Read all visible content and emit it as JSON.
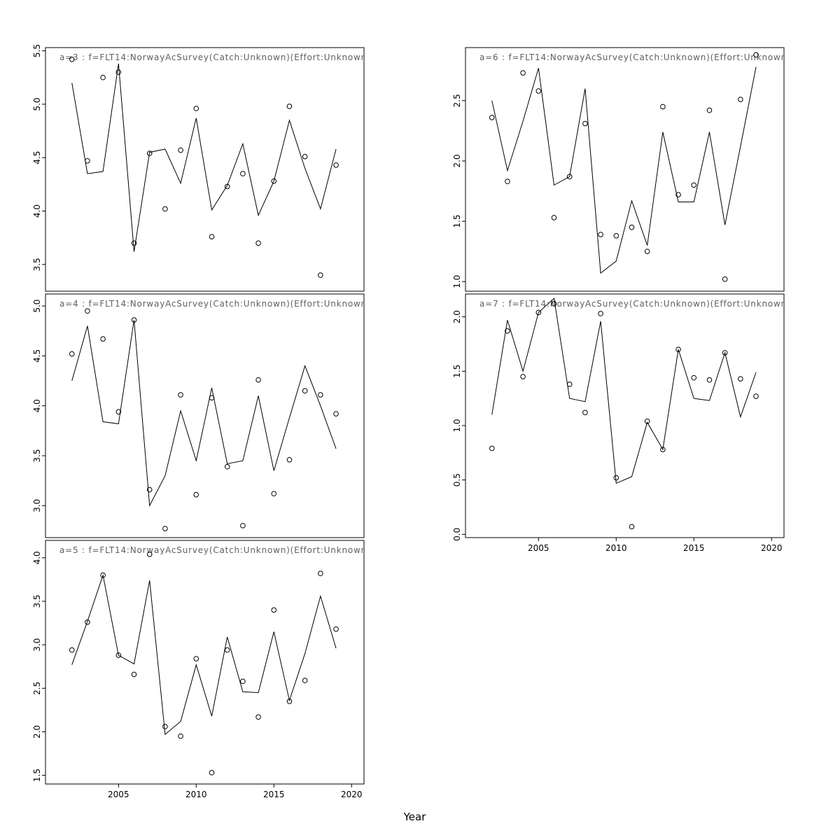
{
  "chart_meta": {
    "xlabel": "Year",
    "x_ticks": [
      2005,
      2010,
      2015,
      2020
    ],
    "x_range": [
      2000.3,
      2020.8
    ],
    "colors": {
      "line": "#000000",
      "points": "#000000",
      "axis": "#000000",
      "border": "#000000",
      "title": "#606060",
      "background": "#ffffff"
    }
  },
  "chart_data": [
    {
      "id": "a3",
      "type": "line",
      "title": "a=3  :  f=FLT14:NorwayAcSurvey(Catch:Unknown)(Effort:Unknown",
      "x": [
        2002,
        2003,
        2004,
        2005,
        2006,
        2007,
        2008,
        2009,
        2010,
        2011,
        2012,
        2013,
        2014,
        2015,
        2016,
        2017,
        2018,
        2019
      ],
      "series": [
        {
          "name": "fit",
          "style": "line",
          "values": [
            5.2,
            4.35,
            4.37,
            5.38,
            3.62,
            4.55,
            4.58,
            4.26,
            4.87,
            4.01,
            4.24,
            4.63,
            3.96,
            4.28,
            4.85,
            4.4,
            4.02,
            4.58
          ]
        },
        {
          "name": "observed",
          "style": "open-circle",
          "values": [
            5.42,
            4.47,
            5.25,
            5.3,
            3.7,
            4.54,
            4.02,
            4.57,
            4.96,
            3.76,
            4.23,
            4.35,
            3.7,
            4.28,
            4.98,
            4.51,
            3.4,
            4.43
          ]
        }
      ],
      "ylim": [
        3.25,
        5.53
      ],
      "yticks": [
        3.5,
        4.0,
        4.5,
        5.0,
        5.5
      ]
    },
    {
      "id": "a4",
      "type": "line",
      "title": "a=4  :  f=FLT14:NorwayAcSurvey(Catch:Unknown)(Effort:Unknown",
      "x": [
        2002,
        2003,
        2004,
        2005,
        2006,
        2007,
        2008,
        2009,
        2010,
        2011,
        2012,
        2013,
        2014,
        2015,
        2016,
        2017,
        2018,
        2019
      ],
      "series": [
        {
          "name": "fit",
          "style": "line",
          "values": [
            4.25,
            4.8,
            3.84,
            3.82,
            4.86,
            3.0,
            3.3,
            3.95,
            3.45,
            4.18,
            3.42,
            3.45,
            4.1,
            3.35,
            3.88,
            4.4,
            4.0,
            3.57
          ]
        },
        {
          "name": "observed",
          "style": "open-circle",
          "values": [
            4.52,
            4.95,
            4.67,
            3.94,
            4.86,
            3.16,
            2.77,
            4.11,
            3.11,
            4.08,
            3.39,
            2.8,
            4.26,
            3.12,
            3.46,
            4.15,
            4.11,
            3.92
          ]
        }
      ],
      "ylim": [
        2.68,
        5.12
      ],
      "yticks": [
        3.0,
        3.5,
        4.0,
        4.5,
        5.0
      ]
    },
    {
      "id": "a5",
      "type": "line",
      "title": "a=5  :  f=FLT14:NorwayAcSurvey(Catch:Unknown)(Effort:Unknown",
      "x": [
        2002,
        2003,
        2004,
        2005,
        2006,
        2007,
        2008,
        2009,
        2010,
        2011,
        2012,
        2013,
        2014,
        2015,
        2016,
        2017,
        2018,
        2019
      ],
      "series": [
        {
          "name": "fit",
          "style": "line",
          "values": [
            2.77,
            3.27,
            3.8,
            2.88,
            2.78,
            3.74,
            1.97,
            2.12,
            2.77,
            2.18,
            3.09,
            2.46,
            2.45,
            3.15,
            2.36,
            2.9,
            3.56,
            2.96
          ]
        },
        {
          "name": "observed",
          "style": "open-circle",
          "values": [
            2.94,
            3.26,
            3.8,
            2.88,
            2.66,
            4.04,
            2.06,
            1.95,
            2.84,
            1.53,
            2.94,
            2.58,
            2.17,
            3.4,
            2.35,
            2.59,
            3.82,
            3.18
          ]
        }
      ],
      "ylim": [
        1.4,
        4.2
      ],
      "yticks": [
        1.5,
        2.0,
        2.5,
        3.0,
        3.5,
        4.0
      ]
    },
    {
      "id": "a6",
      "type": "line",
      "title": "a=6  :  f=FLT14:NorwayAcSurvey(Catch:Unknown)(Effort:Unknown",
      "x": [
        2002,
        2003,
        2004,
        2005,
        2006,
        2007,
        2008,
        2009,
        2010,
        2011,
        2012,
        2013,
        2014,
        2015,
        2016,
        2017,
        2018,
        2019
      ],
      "series": [
        {
          "name": "fit",
          "style": "line",
          "values": [
            2.5,
            1.92,
            2.33,
            2.77,
            1.8,
            1.87,
            2.6,
            1.07,
            1.17,
            1.67,
            1.3,
            2.24,
            1.66,
            1.66,
            2.24,
            1.47,
            2.12,
            2.78
          ]
        },
        {
          "name": "observed",
          "style": "open-circle",
          "values": [
            2.36,
            1.83,
            2.73,
            2.58,
            1.53,
            1.87,
            2.31,
            1.39,
            1.38,
            1.45,
            1.25,
            2.45,
            1.72,
            1.8,
            2.42,
            1.02,
            2.51,
            2.88
          ]
        }
      ],
      "ylim": [
        0.92,
        2.94
      ],
      "yticks": [
        1.0,
        1.5,
        2.0,
        2.5
      ]
    },
    {
      "id": "a7",
      "type": "line",
      "title": "a=7  :  f=FLT14:NorwayAcSurvey(Catch:Unknown)(Effort:Unknown",
      "x": [
        2002,
        2003,
        2004,
        2005,
        2006,
        2007,
        2008,
        2009,
        2010,
        2011,
        2012,
        2013,
        2014,
        2015,
        2016,
        2017,
        2018,
        2019
      ],
      "series": [
        {
          "name": "fit",
          "style": "line",
          "values": [
            1.1,
            1.97,
            1.5,
            2.04,
            2.17,
            1.25,
            1.22,
            1.96,
            0.47,
            0.53,
            1.03,
            0.78,
            1.7,
            1.25,
            1.23,
            1.67,
            1.08,
            1.49
          ]
        },
        {
          "name": "observed",
          "style": "open-circle",
          "values": [
            0.79,
            1.87,
            1.45,
            2.04,
            2.12,
            1.38,
            1.12,
            2.03,
            0.52,
            0.07,
            1.04,
            0.78,
            1.7,
            1.44,
            1.42,
            1.67,
            1.43,
            1.27
          ]
        }
      ],
      "ylim": [
        -0.03,
        2.21
      ],
      "yticks": [
        0.0,
        0.5,
        1.0,
        1.5,
        2.0
      ]
    }
  ]
}
